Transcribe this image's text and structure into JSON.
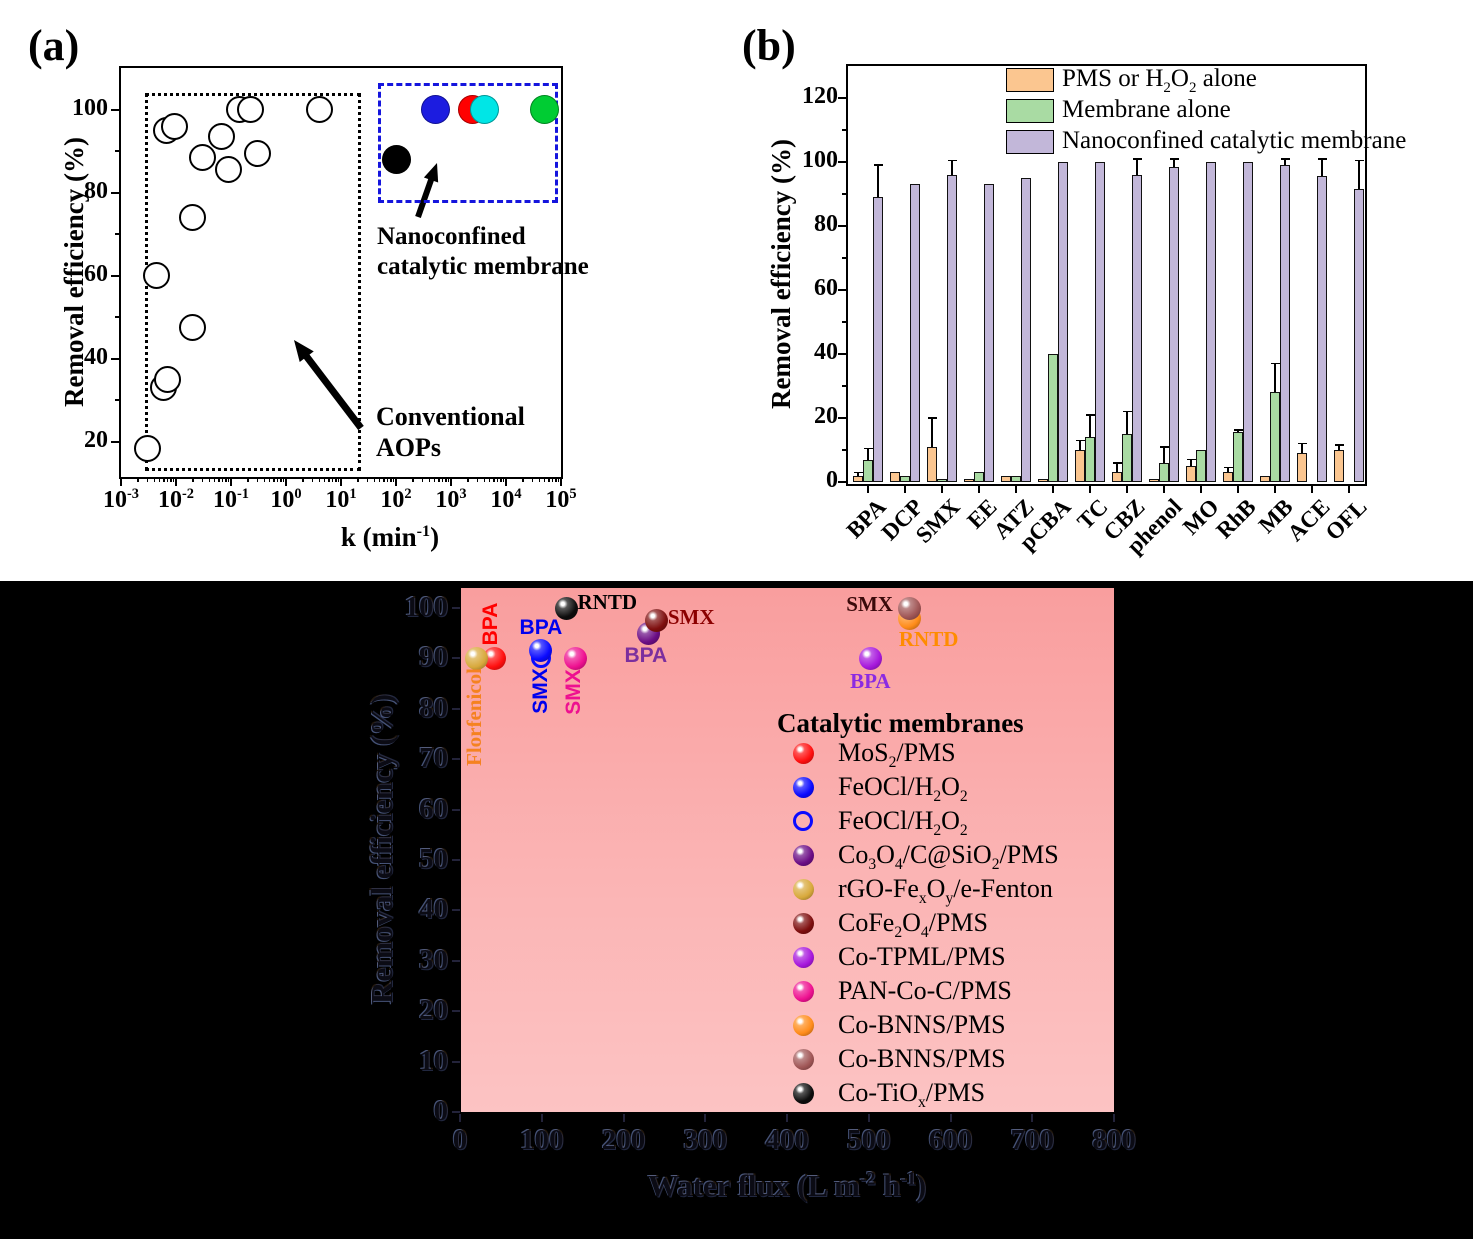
{
  "chart_data": [
    {
      "type": "scatter",
      "panel_label": "(a)",
      "xlabel_html": "k (min<sup>-1</sup>)",
      "ylabel": "Removal efficiency (%)",
      "x_scale": "log",
      "x_tick_exponents": [
        -3,
        -2,
        -1,
        0,
        1,
        2,
        3,
        4,
        5
      ],
      "y_ticks": [
        20,
        40,
        60,
        80,
        100
      ],
      "y_minor_ticks": [
        30,
        50,
        70,
        90
      ],
      "y_range": [
        12,
        110
      ],
      "series": [
        {
          "name": "Conventional AOPs",
          "marker": "open-circle",
          "points": [
            [
              0.003,
              18.5
            ],
            [
              0.0044,
              60
            ],
            [
              0.006,
              33
            ],
            [
              0.007,
              35
            ],
            [
              0.0066,
              95
            ],
            [
              0.0095,
              96
            ],
            [
              0.02,
              47.5
            ],
            [
              0.02,
              74
            ],
            [
              0.03,
              88.5
            ],
            [
              0.068,
              93.5
            ],
            [
              0.09,
              85.5
            ],
            [
              0.14,
              100
            ],
            [
              0.23,
              100
            ],
            [
              0.3,
              89.5
            ],
            [
              4,
              100
            ]
          ]
        },
        {
          "name": "Nanoconfined catalytic membrane",
          "marker": "filled-circle",
          "points": [
            {
              "k": 100,
              "eff": 88,
              "color": "#000000"
            },
            {
              "k": 520,
              "eff": 100,
              "color": "#1C1CE0"
            },
            {
              "k": 2500,
              "eff": 100,
              "color": "#FF0000"
            },
            {
              "k": 4000,
              "eff": 100,
              "color": "#00E6E6"
            },
            {
              "k": 50000,
              "eff": 100,
              "color": "#00CC33"
            }
          ]
        }
      ],
      "boxes": [
        {
          "name": "conventional-aops-box",
          "style": "dotted",
          "color": "#000000",
          "x": [
            0.0027,
            18
          ],
          "y": [
            14.5,
            104
          ]
        },
        {
          "name": "nanoconfined-box",
          "style": "dashed",
          "color": "#1515DD",
          "x": [
            48,
            70000
          ],
          "y": [
            79,
            106.5
          ]
        }
      ],
      "annotation_nanoconfined_line1": "Nanoconfined",
      "annotation_nanoconfined_line2": "catalytic membrane",
      "annotation_conventional_line1": "Conventional",
      "annotation_conventional_line2": "AOPs"
    },
    {
      "type": "bar",
      "panel_label": "(b)",
      "ylabel": "Removal efficiency (%)",
      "y_ticks": [
        0,
        20,
        40,
        60,
        80,
        100,
        120
      ],
      "y_range": [
        0,
        130
      ],
      "categories": [
        "BPA",
        "DCP",
        "SMX",
        "EE",
        "ATZ",
        "pCBA",
        "TC",
        "CBZ",
        "phenol",
        "MO",
        "RhB",
        "MB",
        "ACE",
        "OFL"
      ],
      "series": [
        {
          "name_html": "PMS or H<sub>2</sub>O<sub>2</sub> alone",
          "color": "#FBC690",
          "values": [
            2,
            3,
            11,
            1,
            2,
            1,
            10,
            3,
            1,
            5,
            3,
            2,
            9,
            10
          ],
          "errors": [
            1,
            0,
            9,
            0,
            0,
            0,
            3,
            3,
            0,
            2,
            1.5,
            0,
            3,
            1.5
          ]
        },
        {
          "name_html": "Membrane alone",
          "color": "#A9DBA3",
          "values": [
            7,
            2,
            1,
            3,
            2,
            40,
            14,
            15,
            6,
            10,
            15.5,
            28,
            0,
            0
          ],
          "errors": [
            3.5,
            0,
            0,
            0,
            0,
            0,
            7,
            7,
            5,
            0,
            0.7,
            9,
            0,
            0
          ]
        },
        {
          "name_html": "Nanoconfined catalytic membrane",
          "color": "#C2B7D9",
          "values": [
            89,
            93,
            96,
            93,
            95,
            100,
            100,
            96,
            98.5,
            100,
            100,
            99,
            95.5,
            91.5
          ],
          "errors": [
            10,
            0,
            4.5,
            0,
            0,
            0,
            0,
            5,
            2.5,
            0,
            0,
            2,
            5.5,
            9
          ]
        }
      ]
    },
    {
      "type": "scatter",
      "xlabel_html": "Water flux (L m<sup>-2</sup> h<sup>-1</sup>)",
      "ylabel": "Removal efficiency (%)",
      "x_ticks": [
        0,
        100,
        200,
        300,
        400,
        500,
        600,
        700,
        800
      ],
      "y_ticks": [
        0,
        10,
        20,
        30,
        40,
        50,
        60,
        70,
        80,
        90,
        100
      ],
      "x_range": [
        0,
        800
      ],
      "y_range": [
        0,
        104
      ],
      "legend_title": "Catalytic membranes",
      "plot_bg_top": "#F99E9E",
      "plot_bg_bottom": "#FCC3C3",
      "membranes": [
        {
          "name_html": "MoS<sub>2</sub>/PMS",
          "color": "#FF0F0F",
          "marker": "sphere"
        },
        {
          "name_html": "FeOCl/H<sub>2</sub>O<sub>2</sub>",
          "color": "#0A0AFF",
          "marker": "sphere"
        },
        {
          "name_html": "FeOCl/H<sub>2</sub>O<sub>2</sub>",
          "color": "#0A0AFF",
          "marker": "open-circle"
        },
        {
          "name_html": "Co<sub>3</sub>O<sub>4</sub>/C@SiO<sub>2</sub>/PMS",
          "color": "#6B0D85",
          "marker": "sphere"
        },
        {
          "name_html": "rGO-Fe<sub>x</sub>O<sub>y</sub>/e-Fenton",
          "color": "#D8A93C",
          "marker": "sphere"
        },
        {
          "name_html": "CoFe<sub>2</sub>O<sub>4</sub>/PMS",
          "color": "#7E0E0E",
          "marker": "sphere"
        },
        {
          "name_html": "Co-TPML/PMS",
          "color": "#A718DC",
          "marker": "sphere"
        },
        {
          "name_html": "PAN-Co-C/PMS",
          "color": "#EE1090",
          "marker": "sphere"
        },
        {
          "name_html": "Co-BNNS/PMS",
          "color": "#FF8C1A",
          "marker": "sphere"
        },
        {
          "name_html": "Co-BNNS/PMS",
          "color": "#A05656",
          "marker": "sphere"
        },
        {
          "name_html": "Co-TiO<sub>x</sub>/PMS",
          "color": "#0D0D0D",
          "marker": "sphere"
        }
      ],
      "points": [
        {
          "membrane": 0,
          "x": 42,
          "y": 90,
          "label": "BPA",
          "label_color": "#FF0000",
          "rot": true,
          "font": "sans",
          "offset": [
            -3,
            -34
          ]
        },
        {
          "membrane": 4,
          "x": 20,
          "y": 90,
          "label": "Florfenicol",
          "label_color": "#F58220",
          "rot": true,
          "font": "serif",
          "offset": [
            -2,
            59
          ]
        },
        {
          "membrane": 2,
          "x": 99,
          "y": 90,
          "label": "SMX",
          "label_color": "#0000EE",
          "rot": true,
          "font": "sans",
          "offset": [
            0,
            33
          ]
        },
        {
          "membrane": 1,
          "x": 99,
          "y": 91.5,
          "label": "BPA",
          "label_color": "#0000EE",
          "rot": false,
          "font": "sans",
          "offset": [
            0,
            -23
          ]
        },
        {
          "membrane": 7,
          "x": 141,
          "y": 90,
          "label": "SMX",
          "label_color": "#EE1090",
          "rot": true,
          "font": "sans",
          "offset": [
            -1,
            34
          ]
        },
        {
          "membrane": 10,
          "x": 130,
          "y": 100,
          "label": "RNTD",
          "label_color": "#000000",
          "rot": false,
          "font": "serif",
          "offset": [
            41,
            -6
          ]
        },
        {
          "membrane": 3,
          "x": 231,
          "y": 95,
          "label": "BPA",
          "label_color": "#7B2F9E",
          "rot": false,
          "font": "sans",
          "offset": [
            -3,
            23
          ]
        },
        {
          "membrane": 5,
          "x": 240,
          "y": 97.6,
          "label": "SMX",
          "label_color": "#8B0000",
          "rot": false,
          "font": "serif",
          "offset": [
            35,
            -3
          ]
        },
        {
          "membrane": 6,
          "x": 502,
          "y": 90,
          "label": "BPA",
          "label_color": "#8B2BE2",
          "rot": false,
          "font": "serif",
          "offset": [
            0,
            23
          ]
        },
        {
          "membrane": 8,
          "x": 550,
          "y": 98,
          "label": "RNTD",
          "label_color": "#FF8C00",
          "rot": false,
          "font": "serif",
          "offset": [
            19,
            21
          ]
        },
        {
          "membrane": 9,
          "x": 550,
          "y": 100,
          "label": "SMX",
          "label_color": "#3A0A0A",
          "rot": false,
          "font": "serif",
          "offset": [
            -40,
            -4
          ]
        }
      ]
    }
  ]
}
